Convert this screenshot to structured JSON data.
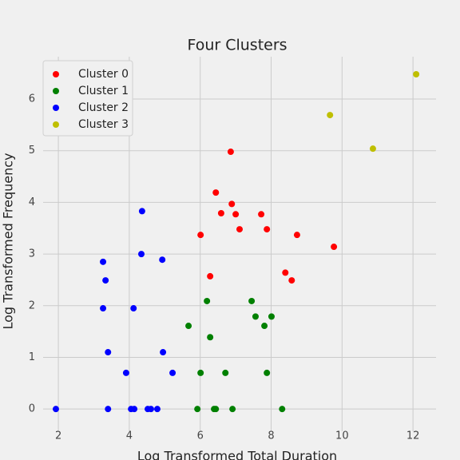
{
  "chart_data": {
    "type": "scatter",
    "title": "Four Clusters",
    "xlabel": "Log Transformed Total Duration",
    "ylabel": "Log Transformed Frequency",
    "xlim": [
      1.57,
      12.65
    ],
    "ylim": [
      -0.43,
      6.82
    ],
    "xticks": [
      2,
      4,
      6,
      8,
      10,
      12
    ],
    "yticks": [
      0,
      1,
      2,
      3,
      4,
      5,
      6
    ],
    "grid": true,
    "legend": "upper left",
    "series": [
      {
        "name": "Cluster 0",
        "color": "#ff0000",
        "x": [
          6.01,
          6.28,
          6.44,
          6.59,
          6.86,
          6.89,
          7.0,
          7.11,
          7.72,
          7.88,
          8.4,
          8.58,
          8.73,
          9.77
        ],
        "y": [
          3.37,
          2.57,
          4.19,
          3.79,
          4.98,
          3.97,
          3.77,
          3.48,
          3.77,
          3.48,
          2.64,
          2.49,
          3.37,
          3.14
        ]
      },
      {
        "name": "Cluster 1",
        "color": "#008000",
        "x": [
          5.67,
          5.92,
          6.01,
          6.19,
          6.28,
          6.39,
          6.44,
          6.71,
          6.91,
          7.45,
          7.56,
          7.81,
          7.88,
          8.01,
          8.31
        ],
        "y": [
          1.61,
          0,
          0.7,
          2.09,
          1.39,
          0,
          0,
          0.7,
          0,
          2.09,
          1.79,
          1.61,
          0.7,
          1.79,
          0
        ]
      },
      {
        "name": "Cluster 2",
        "color": "#0000ff",
        "x": [
          1.93,
          3.26,
          3.26,
          3.33,
          3.4,
          3.4,
          3.91,
          4.05,
          4.14,
          4.12,
          4.34,
          4.36,
          4.52,
          4.61,
          4.79,
          4.93,
          4.95,
          5.22
        ],
        "y": [
          0,
          2.85,
          1.95,
          2.49,
          1.1,
          0,
          0.7,
          0,
          0,
          1.95,
          3.0,
          3.83,
          0,
          0,
          0,
          2.89,
          1.1,
          0.7
        ]
      },
      {
        "name": "Cluster 3",
        "color": "#bfbf00",
        "x": [
          9.66,
          10.87,
          12.09
        ],
        "y": [
          5.69,
          5.04,
          6.48
        ]
      }
    ]
  }
}
